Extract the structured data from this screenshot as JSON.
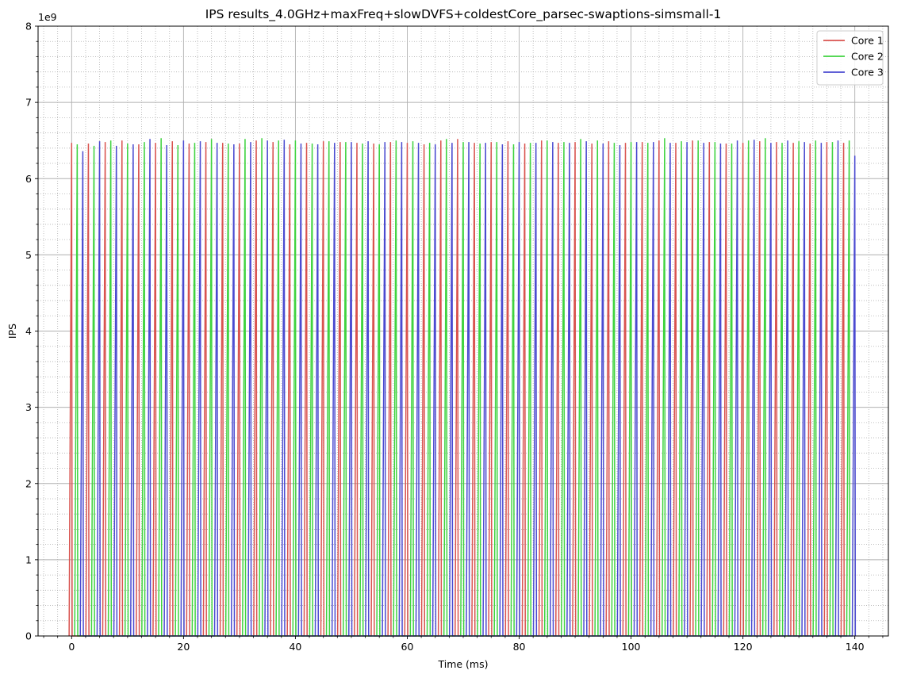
{
  "chart_data": {
    "type": "line",
    "title": "IPS results_4.0GHz+maxFreq+slowDVFS+coldestCore_parsec-swaptions-simsmall-1",
    "xlabel": "Time (ms)",
    "ylabel": "IPS",
    "y_offset_label": "1e9",
    "xlim": [
      -6,
      146
    ],
    "ylim": [
      0,
      8
    ],
    "x_ticks": [
      0,
      20,
      40,
      60,
      80,
      100,
      120,
      140
    ],
    "x_tick_labels": [
      "0",
      "20",
      "40",
      "60",
      "80",
      "100",
      "120",
      "140"
    ],
    "y_ticks": [
      0,
      1,
      2,
      3,
      4,
      5,
      6,
      7,
      8
    ],
    "y_tick_labels": [
      "0",
      "1",
      "2",
      "3",
      "4",
      "5",
      "6",
      "7",
      "8"
    ],
    "x_minor_step": 2.5,
    "y_minor_step": 0.2,
    "grid": "major solid + minor dotted",
    "legend_position": "top-right",
    "y_scale": 1000000000,
    "series": [
      {
        "name": "Core 1",
        "color": "#d9534f",
        "peaks_x": [
          0,
          3,
          6,
          9,
          12,
          15,
          18,
          21,
          24,
          27,
          30,
          33,
          36,
          39,
          42,
          45,
          48,
          51,
          54,
          57,
          60,
          63,
          66,
          69,
          72,
          75,
          78,
          81,
          84,
          87,
          90,
          93,
          96,
          99,
          102,
          105,
          108,
          111,
          114,
          117,
          120,
          123,
          126,
          129,
          132,
          135,
          138
        ],
        "peaks_y": [
          6.47,
          6.46,
          6.48,
          6.5,
          6.45,
          6.47,
          6.49,
          6.46,
          6.48,
          6.47,
          6.46,
          6.5,
          6.48,
          6.45,
          6.47,
          6.49,
          6.48,
          6.47,
          6.46,
          6.48,
          6.47,
          6.45,
          6.5,
          6.52,
          6.47,
          6.48,
          6.49,
          6.46,
          6.5,
          6.47,
          6.48,
          6.46,
          6.49,
          6.47,
          6.48,
          6.5,
          6.47,
          6.5,
          6.48,
          6.46,
          6.47,
          6.49,
          6.48,
          6.47,
          6.46,
          6.48,
          6.47
        ]
      },
      {
        "name": "Core 2",
        "color": "#3fd33f",
        "peaks_x": [
          1,
          4,
          7,
          10,
          13,
          16,
          19,
          22,
          25,
          28,
          31,
          34,
          37,
          40,
          43,
          46,
          49,
          52,
          55,
          58,
          61,
          64,
          67,
          70,
          73,
          76,
          79,
          82,
          85,
          88,
          91,
          94,
          97,
          100,
          103,
          106,
          109,
          112,
          115,
          118,
          121,
          124,
          127,
          130,
          133,
          136,
          139
        ],
        "peaks_y": [
          6.45,
          6.43,
          6.5,
          6.46,
          6.48,
          6.53,
          6.44,
          6.47,
          6.52,
          6.46,
          6.52,
          6.53,
          6.5,
          6.5,
          6.46,
          6.49,
          6.48,
          6.46,
          6.45,
          6.5,
          6.49,
          6.47,
          6.52,
          6.48,
          6.46,
          6.48,
          6.45,
          6.47,
          6.5,
          6.48,
          6.52,
          6.5,
          6.47,
          6.48,
          6.47,
          6.53,
          6.49,
          6.5,
          6.48,
          6.46,
          6.5,
          6.53,
          6.47,
          6.49,
          6.5,
          6.48,
          6.5
        ]
      },
      {
        "name": "Core 3",
        "color": "#4a4ad0",
        "peaks_x": [
          2,
          5,
          8,
          11,
          14,
          17,
          20,
          23,
          26,
          29,
          32,
          35,
          38,
          41,
          44,
          47,
          50,
          53,
          56,
          59,
          62,
          65,
          68,
          71,
          74,
          77,
          80,
          83,
          86,
          89,
          92,
          95,
          98,
          101,
          104,
          107,
          110,
          113,
          116,
          119,
          122,
          125,
          128,
          131,
          134,
          137,
          140
        ],
        "peaks_y": [
          6.36,
          6.49,
          6.43,
          6.45,
          6.52,
          6.44,
          6.5,
          6.49,
          6.47,
          6.45,
          6.48,
          6.5,
          6.51,
          6.46,
          6.45,
          6.47,
          6.48,
          6.49,
          6.48,
          6.48,
          6.47,
          6.45,
          6.47,
          6.48,
          6.47,
          6.45,
          6.48,
          6.47,
          6.48,
          6.47,
          6.49,
          6.46,
          6.44,
          6.48,
          6.48,
          6.47,
          6.48,
          6.47,
          6.46,
          6.5,
          6.51,
          6.47,
          6.5,
          6.48,
          6.47,
          6.5,
          6.3
        ]
      }
    ]
  }
}
